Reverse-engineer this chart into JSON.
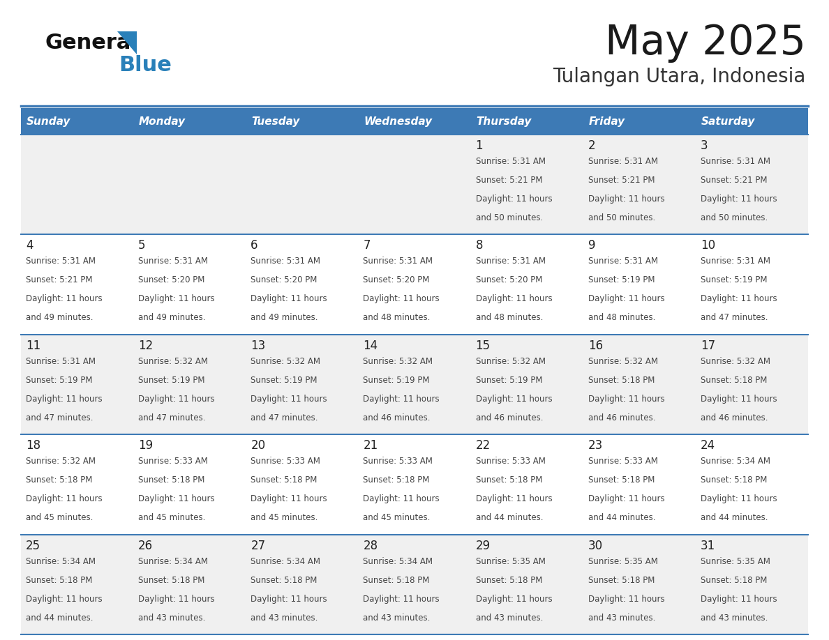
{
  "title": "May 2025",
  "subtitle": "Tulangan Utara, Indonesia",
  "days_of_week": [
    "Sunday",
    "Monday",
    "Tuesday",
    "Wednesday",
    "Thursday",
    "Friday",
    "Saturday"
  ],
  "header_bg": "#3d7ab5",
  "header_text_color": "#ffffff",
  "row_bg_odd": "#f0f0f0",
  "row_bg_even": "#ffffff",
  "cell_text_color": "#444444",
  "day_num_color": "#222222",
  "grid_line_color": "#3d7ab5",
  "background_color": "#ffffff",
  "title_color": "#1a1a1a",
  "subtitle_color": "#333333",
  "logo_general_color": "#111111",
  "logo_blue_color": "#2980b9",
  "calendar_data": [
    [
      null,
      null,
      null,
      null,
      {
        "day": 1,
        "sunrise": "5:31 AM",
        "sunset": "5:21 PM",
        "daylight": "11 hours and 50 minutes"
      },
      {
        "day": 2,
        "sunrise": "5:31 AM",
        "sunset": "5:21 PM",
        "daylight": "11 hours and 50 minutes"
      },
      {
        "day": 3,
        "sunrise": "5:31 AM",
        "sunset": "5:21 PM",
        "daylight": "11 hours and 50 minutes"
      }
    ],
    [
      {
        "day": 4,
        "sunrise": "5:31 AM",
        "sunset": "5:21 PM",
        "daylight": "11 hours and 49 minutes"
      },
      {
        "day": 5,
        "sunrise": "5:31 AM",
        "sunset": "5:20 PM",
        "daylight": "11 hours and 49 minutes"
      },
      {
        "day": 6,
        "sunrise": "5:31 AM",
        "sunset": "5:20 PM",
        "daylight": "11 hours and 49 minutes"
      },
      {
        "day": 7,
        "sunrise": "5:31 AM",
        "sunset": "5:20 PM",
        "daylight": "11 hours and 48 minutes"
      },
      {
        "day": 8,
        "sunrise": "5:31 AM",
        "sunset": "5:20 PM",
        "daylight": "11 hours and 48 minutes"
      },
      {
        "day": 9,
        "sunrise": "5:31 AM",
        "sunset": "5:19 PM",
        "daylight": "11 hours and 48 minutes"
      },
      {
        "day": 10,
        "sunrise": "5:31 AM",
        "sunset": "5:19 PM",
        "daylight": "11 hours and 47 minutes"
      }
    ],
    [
      {
        "day": 11,
        "sunrise": "5:31 AM",
        "sunset": "5:19 PM",
        "daylight": "11 hours and 47 minutes"
      },
      {
        "day": 12,
        "sunrise": "5:32 AM",
        "sunset": "5:19 PM",
        "daylight": "11 hours and 47 minutes"
      },
      {
        "day": 13,
        "sunrise": "5:32 AM",
        "sunset": "5:19 PM",
        "daylight": "11 hours and 47 minutes"
      },
      {
        "day": 14,
        "sunrise": "5:32 AM",
        "sunset": "5:19 PM",
        "daylight": "11 hours and 46 minutes"
      },
      {
        "day": 15,
        "sunrise": "5:32 AM",
        "sunset": "5:19 PM",
        "daylight": "11 hours and 46 minutes"
      },
      {
        "day": 16,
        "sunrise": "5:32 AM",
        "sunset": "5:18 PM",
        "daylight": "11 hours and 46 minutes"
      },
      {
        "day": 17,
        "sunrise": "5:32 AM",
        "sunset": "5:18 PM",
        "daylight": "11 hours and 46 minutes"
      }
    ],
    [
      {
        "day": 18,
        "sunrise": "5:32 AM",
        "sunset": "5:18 PM",
        "daylight": "11 hours and 45 minutes"
      },
      {
        "day": 19,
        "sunrise": "5:33 AM",
        "sunset": "5:18 PM",
        "daylight": "11 hours and 45 minutes"
      },
      {
        "day": 20,
        "sunrise": "5:33 AM",
        "sunset": "5:18 PM",
        "daylight": "11 hours and 45 minutes"
      },
      {
        "day": 21,
        "sunrise": "5:33 AM",
        "sunset": "5:18 PM",
        "daylight": "11 hours and 45 minutes"
      },
      {
        "day": 22,
        "sunrise": "5:33 AM",
        "sunset": "5:18 PM",
        "daylight": "11 hours and 44 minutes"
      },
      {
        "day": 23,
        "sunrise": "5:33 AM",
        "sunset": "5:18 PM",
        "daylight": "11 hours and 44 minutes"
      },
      {
        "day": 24,
        "sunrise": "5:34 AM",
        "sunset": "5:18 PM",
        "daylight": "11 hours and 44 minutes"
      }
    ],
    [
      {
        "day": 25,
        "sunrise": "5:34 AM",
        "sunset": "5:18 PM",
        "daylight": "11 hours and 44 minutes"
      },
      {
        "day": 26,
        "sunrise": "5:34 AM",
        "sunset": "5:18 PM",
        "daylight": "11 hours and 43 minutes"
      },
      {
        "day": 27,
        "sunrise": "5:34 AM",
        "sunset": "5:18 PM",
        "daylight": "11 hours and 43 minutes"
      },
      {
        "day": 28,
        "sunrise": "5:34 AM",
        "sunset": "5:18 PM",
        "daylight": "11 hours and 43 minutes"
      },
      {
        "day": 29,
        "sunrise": "5:35 AM",
        "sunset": "5:18 PM",
        "daylight": "11 hours and 43 minutes"
      },
      {
        "day": 30,
        "sunrise": "5:35 AM",
        "sunset": "5:18 PM",
        "daylight": "11 hours and 43 minutes"
      },
      {
        "day": 31,
        "sunrise": "5:35 AM",
        "sunset": "5:18 PM",
        "daylight": "11 hours and 43 minutes"
      }
    ]
  ]
}
